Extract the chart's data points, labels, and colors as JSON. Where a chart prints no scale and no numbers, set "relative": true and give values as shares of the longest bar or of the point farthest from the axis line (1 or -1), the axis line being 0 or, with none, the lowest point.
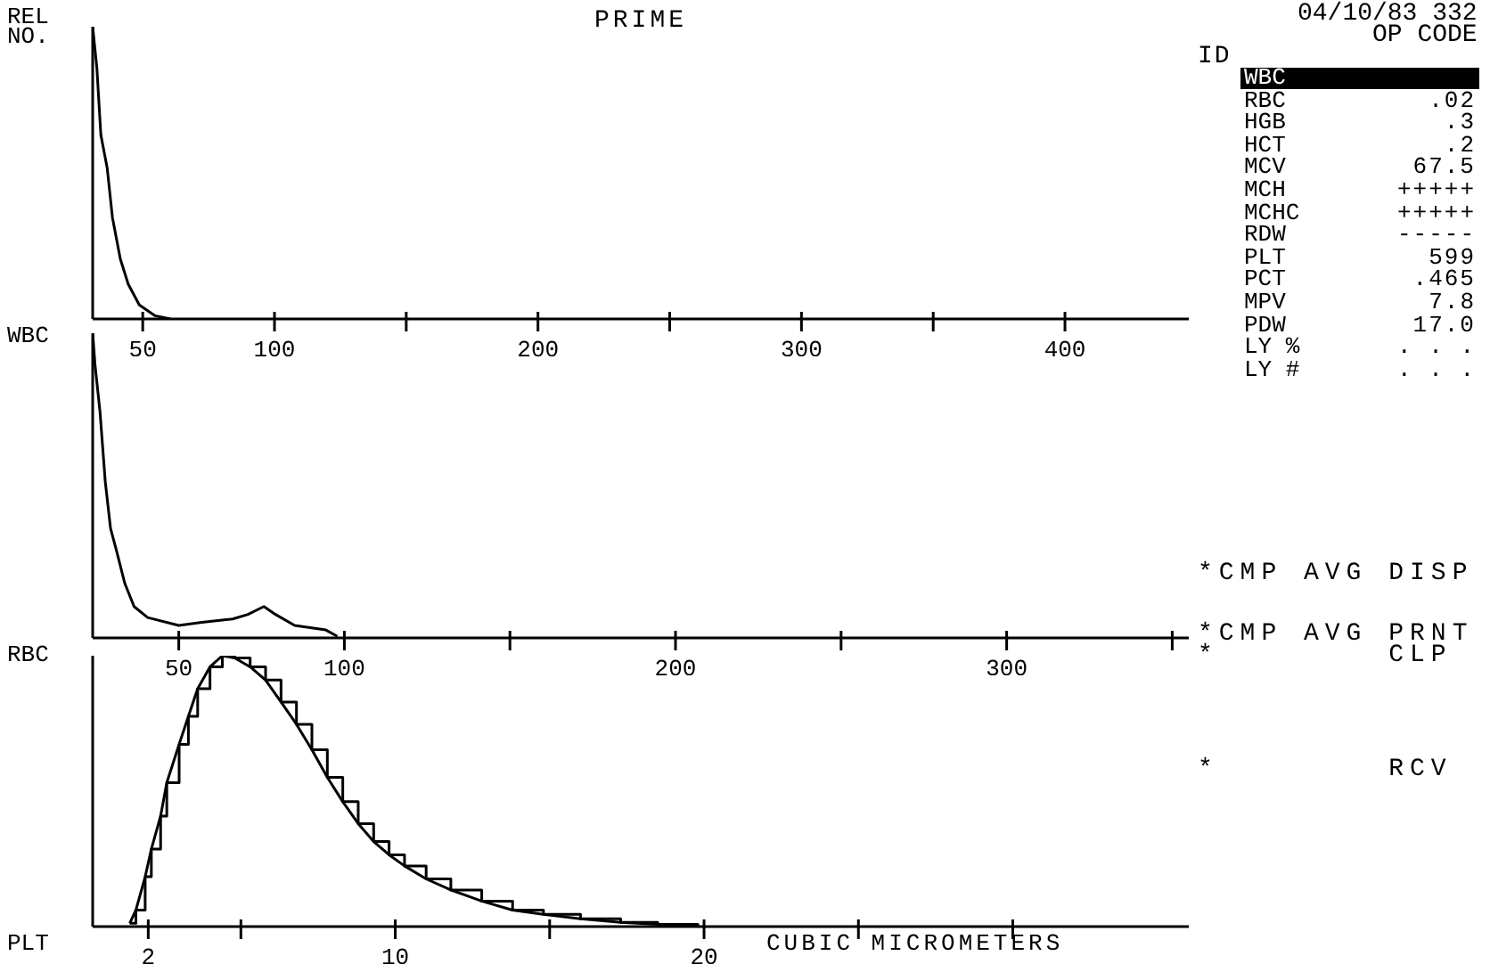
{
  "chart_data": [
    {
      "type": "line",
      "title": "PRIME",
      "ylabel": "REL NO.",
      "annotations": [
        "WBC"
      ],
      "relative": true,
      "xlim": [
        31,
        447
      ],
      "xticks": [
        50,
        100,
        {
          "value": 150,
          "label": null
        },
        200,
        {
          "value": 250,
          "label": null
        },
        300,
        {
          "value": 350,
          "label": null
        },
        400
      ],
      "series": [
        {
          "color": "#000000",
          "x": [
            31,
            32.6,
            34.1,
            36.5,
            38.5,
            41.5,
            44.5,
            48.7,
            54.7,
            60.5
          ],
          "values": [
            1,
            0.858,
            0.63,
            0.517,
            0.347,
            0.205,
            0.119,
            0.048,
            0.011,
            0
          ]
        }
      ]
    },
    {
      "type": "line",
      "annotations": [
        "RBC"
      ],
      "relative": true,
      "xlim": [
        24,
        355
      ],
      "xticks": [
        50,
        100,
        {
          "value": 150,
          "label": null
        },
        200,
        {
          "value": 250,
          "label": null
        },
        300,
        {
          "value": 350,
          "label": null
        }
      ],
      "series": [
        {
          "color": "#000000",
          "x": [
            24,
            24.7,
            26.2,
            27.8,
            29.4,
            31.3,
            33.7,
            36.5,
            40.6,
            50,
            57,
            66.3,
            70.9,
            75.7,
            79.2,
            85,
            94.4,
            97.9
          ],
          "values": [
            1,
            0.897,
            0.744,
            0.513,
            0.359,
            0.282,
            0.179,
            0.103,
            0.067,
            0.041,
            0.051,
            0.062,
            0.077,
            0.103,
            0.077,
            0.041,
            0.026,
            0.005
          ]
        }
      ]
    },
    {
      "type": "step",
      "xlabel": "CUBIC MICROMETERS",
      "annotations": [
        "PLT"
      ],
      "relative": true,
      "xlim": [
        0.2,
        35.7
      ],
      "xticks": [
        2,
        {
          "value": 5,
          "label": null
        },
        10,
        {
          "value": 15,
          "label": null
        },
        20,
        {
          "value": 25,
          "label": null
        },
        {
          "value": 30,
          "label": null
        }
      ],
      "series": [
        {
          "color": "#000000",
          "x": [
            1.4,
            1.6,
            1.9,
            2.1,
            2.4,
            2.6,
            3,
            3.3,
            3.6,
            4,
            4.4,
            4.8,
            5.3,
            5.8,
            6.3,
            6.8,
            7.3,
            7.8,
            8.3,
            8.8,
            9.3,
            9.8,
            10.3,
            11,
            11.8,
            12.8,
            13.8,
            14.8,
            16,
            17.3,
            18.5,
            19.8
          ],
          "values": [
            0.012,
            0.061,
            0.184,
            0.286,
            0.408,
            0.531,
            0.673,
            0.776,
            0.878,
            0.959,
            1,
            0.992,
            0.959,
            0.91,
            0.829,
            0.747,
            0.653,
            0.551,
            0.461,
            0.38,
            0.314,
            0.265,
            0.224,
            0.176,
            0.135,
            0.094,
            0.061,
            0.045,
            0.029,
            0.016,
            0.008,
            0
          ]
        },
        {
          "type": "line",
          "color": "#000000",
          "x": [
            1.4,
            1.6,
            1.9,
            2.1,
            2.4,
            2.6,
            3,
            3.3,
            3.6,
            4,
            4.4,
            4.8,
            5.3,
            5.8,
            6.3,
            6.8,
            7.3,
            7.8,
            8.3,
            8.8,
            9.3,
            9.8,
            10.3,
            11,
            11.8,
            12.8,
            13.8,
            14.8,
            16,
            17.3,
            18.5,
            19.8
          ],
          "values": [
            0.012,
            0.061,
            0.184,
            0.286,
            0.408,
            0.531,
            0.673,
            0.776,
            0.878,
            0.959,
            1,
            0.992,
            0.959,
            0.91,
            0.829,
            0.747,
            0.653,
            0.551,
            0.461,
            0.38,
            0.314,
            0.265,
            0.224,
            0.176,
            0.135,
            0.094,
            0.061,
            0.045,
            0.029,
            0.016,
            0.008,
            0
          ]
        }
      ]
    },
    {
      "type": "other",
      "annotations": [
        "04/10/83 332",
        "OP CODE",
        "ID",
        "*CMP AVG DISP",
        "*CMP AVG PRNT",
        "*        CLP",
        "*        RCV"
      ],
      "categories": [
        "WBC",
        "RBC",
        "HGB",
        "HCT",
        "MCV",
        "MCH",
        "MCHC",
        "RDW",
        "PLT",
        "PCT",
        "MPV",
        "PDW",
        "LY %",
        "LY #"
      ],
      "value_labels": [
        null,
        ".02",
        ".3",
        ".2",
        "67.5",
        "+++++",
        "+++++",
        "-----",
        "599",
        ".465",
        "7.8",
        "17.0",
        ". . .",
        ". . ."
      ]
    }
  ]
}
